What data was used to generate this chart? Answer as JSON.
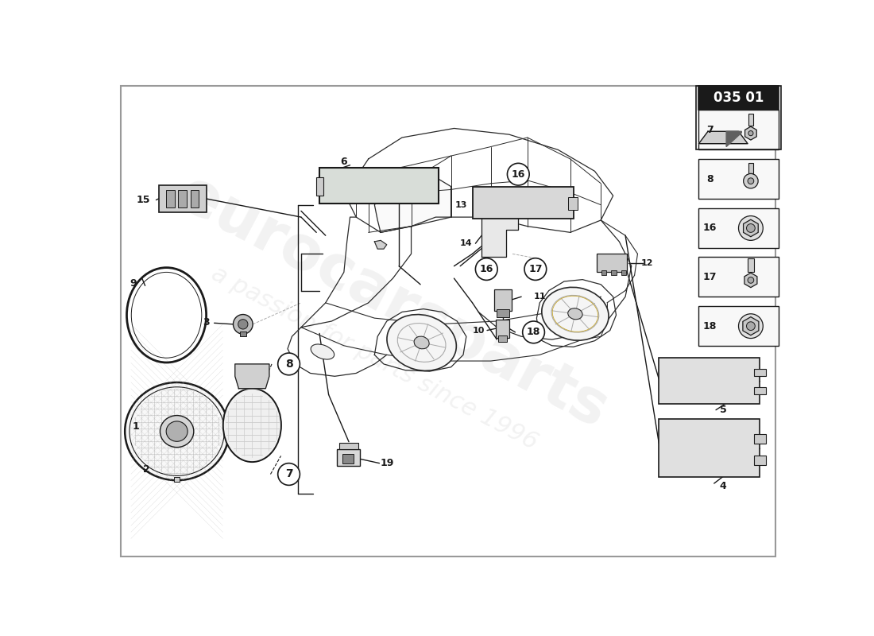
{
  "background_color": "#ffffff",
  "line_color": "#1a1a1a",
  "gray1": "#aaaaaa",
  "gray2": "#cccccc",
  "gray3": "#e8e8e8",
  "dark_box": "#1a1a1a",
  "page_id": "035 01",
  "watermark1": "eurocarsparts",
  "watermark2": "a passion for parts since 1996",
  "sidebar_nums": [
    "18",
    "17",
    "16",
    "8",
    "7"
  ],
  "part_nums": [
    "1",
    "2",
    "3",
    "4",
    "5",
    "6",
    "7",
    "8",
    "9",
    "10",
    "11",
    "12",
    "13",
    "14",
    "15",
    "16",
    "17",
    "18",
    "19"
  ]
}
